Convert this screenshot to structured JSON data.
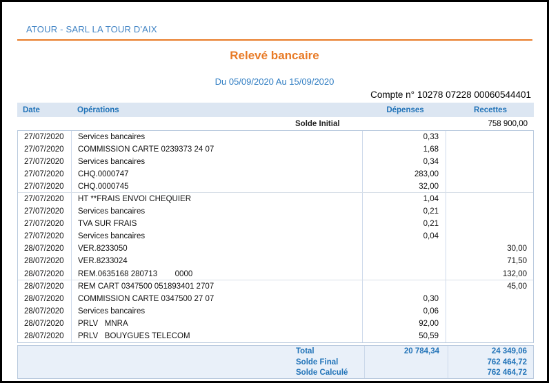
{
  "header": {
    "company": "ATOUR - SARL LA TOUR D'AIX",
    "title": "Relevé bancaire",
    "period": "Du 05/09/2020 Au 15/09/2020",
    "account": "Compte n° 10278 07228 00060544401"
  },
  "table": {
    "headers": {
      "date": "Date",
      "operations": "Opérations",
      "depenses": "Dépenses",
      "recettes": "Recettes"
    },
    "solde_initial": {
      "label": "Solde Initial",
      "recettes": "758 900,00"
    },
    "rows": [
      {
        "date": "27/07/2020",
        "operation": "Services bancaires",
        "depenses": "0,33",
        "recettes": ""
      },
      {
        "date": "27/07/2020",
        "operation": "COMMISSION CARTE 0239373 24 07",
        "depenses": "1,68",
        "recettes": ""
      },
      {
        "date": "27/07/2020",
        "operation": "Services bancaires",
        "depenses": "0,34",
        "recettes": ""
      },
      {
        "date": "27/07/2020",
        "operation": "CHQ.0000747",
        "depenses": "283,00",
        "recettes": ""
      },
      {
        "date": "27/07/2020",
        "operation": "CHQ.0000745",
        "depenses": "32,00",
        "recettes": "",
        "group_end": true
      },
      {
        "date": "27/07/2020",
        "operation": "HT **FRAIS ENVOI CHEQUIER",
        "depenses": "1,04",
        "recettes": ""
      },
      {
        "date": "27/07/2020",
        "operation": "Services bancaires",
        "depenses": "0,21",
        "recettes": ""
      },
      {
        "date": "27/07/2020",
        "operation": "TVA SUR FRAIS",
        "depenses": "0,21",
        "recettes": ""
      },
      {
        "date": "27/07/2020",
        "operation": "Services bancaires",
        "depenses": "0,04",
        "recettes": ""
      },
      {
        "date": "28/07/2020",
        "operation": "VER.8233050",
        "depenses": "",
        "recettes": "30,00"
      },
      {
        "date": "28/07/2020",
        "operation": "VER.8233024",
        "depenses": "",
        "recettes": "71,50"
      },
      {
        "date": "28/07/2020",
        "operation": "REM.0635168 280713        0000",
        "depenses": "",
        "recettes": "132,00",
        "group_end": true
      },
      {
        "date": "28/07/2020",
        "operation": "REM CART 0347500 051893401 2707",
        "depenses": "",
        "recettes": "45,00"
      },
      {
        "date": "28/07/2020",
        "operation": "COMMISSION CARTE 0347500 27 07",
        "depenses": "0,30",
        "recettes": ""
      },
      {
        "date": "28/07/2020",
        "operation": "Services bancaires",
        "depenses": "0,06",
        "recettes": ""
      },
      {
        "date": "28/07/2020",
        "operation": "PRLV   MNRA",
        "depenses": "92,00",
        "recettes": ""
      },
      {
        "date": "28/07/2020",
        "operation": "PRLV   BOUYGUES TELECOM",
        "depenses": "50,59",
        "recettes": ""
      }
    ],
    "footer": [
      {
        "label": "Total",
        "depenses": "20 784,34",
        "recettes": "24 349,06"
      },
      {
        "label": "Solde Final",
        "depenses": "",
        "recettes": "762 464,72"
      },
      {
        "label": "Solde Calculé",
        "depenses": "",
        "recettes": "762 464,72"
      }
    ]
  },
  "colors": {
    "accent_orange": "#e87a25",
    "label_blue": "#2173b8",
    "company_blue": "#4083c4",
    "header_bg": "#dce6f2",
    "footer_bg": "#e9f0f9",
    "window_border": "#000000"
  }
}
